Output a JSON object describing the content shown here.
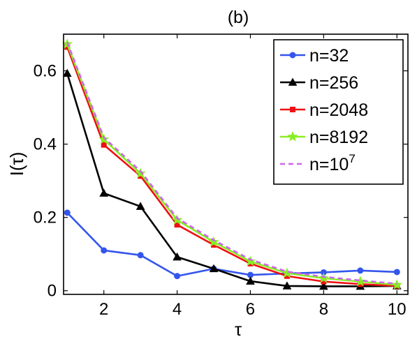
{
  "chart_data": {
    "type": "line",
    "title": "(b)",
    "xlabel": "τ",
    "ylabel": "I(τ)",
    "xlim": [
      0.9,
      10.3
    ],
    "ylim": [
      -0.01,
      0.7
    ],
    "x": [
      1,
      2,
      3,
      4,
      5,
      6,
      7,
      8,
      9,
      10
    ],
    "xticks": [
      2,
      4,
      6,
      8,
      10
    ],
    "xtick_labels": [
      "2",
      "4",
      "6",
      "8",
      "10"
    ],
    "yticks": [
      0,
      0.2,
      0.4,
      0.6
    ],
    "ytick_labels": [
      "0",
      "0.2",
      "0.4",
      "0.6"
    ],
    "grid": false,
    "legend_position": "top-right",
    "series": [
      {
        "name": "n=32",
        "color": "#3355ee",
        "marker": "circle",
        "dash": "solid",
        "values": [
          0.213,
          0.11,
          0.097,
          0.04,
          0.06,
          0.043,
          0.047,
          0.05,
          0.055,
          0.051
        ]
      },
      {
        "name": "n=256",
        "color": "#000000",
        "marker": "triangle",
        "dash": "solid",
        "values": [
          0.593,
          0.266,
          0.23,
          0.092,
          0.06,
          0.026,
          0.013,
          0.012,
          0.012,
          0.013
        ]
      },
      {
        "name": "n=2048",
        "color": "#ee1111",
        "marker": "square",
        "dash": "solid",
        "values": [
          0.665,
          0.398,
          0.313,
          0.18,
          0.125,
          0.074,
          0.04,
          0.025,
          0.018,
          0.013
        ]
      },
      {
        "name": "n=8192",
        "color": "#88ee22",
        "marker": "star",
        "dash": "solid",
        "values": [
          0.673,
          0.413,
          0.32,
          0.193,
          0.133,
          0.08,
          0.048,
          0.034,
          0.025,
          0.016
        ]
      },
      {
        "name": "n=10",
        "name_superscript": "7",
        "color": "#cc66ee",
        "marker": "none",
        "dash": "dashed",
        "values": [
          0.678,
          0.418,
          0.326,
          0.198,
          0.138,
          0.085,
          0.052,
          0.038,
          0.028,
          0.019
        ]
      }
    ]
  }
}
